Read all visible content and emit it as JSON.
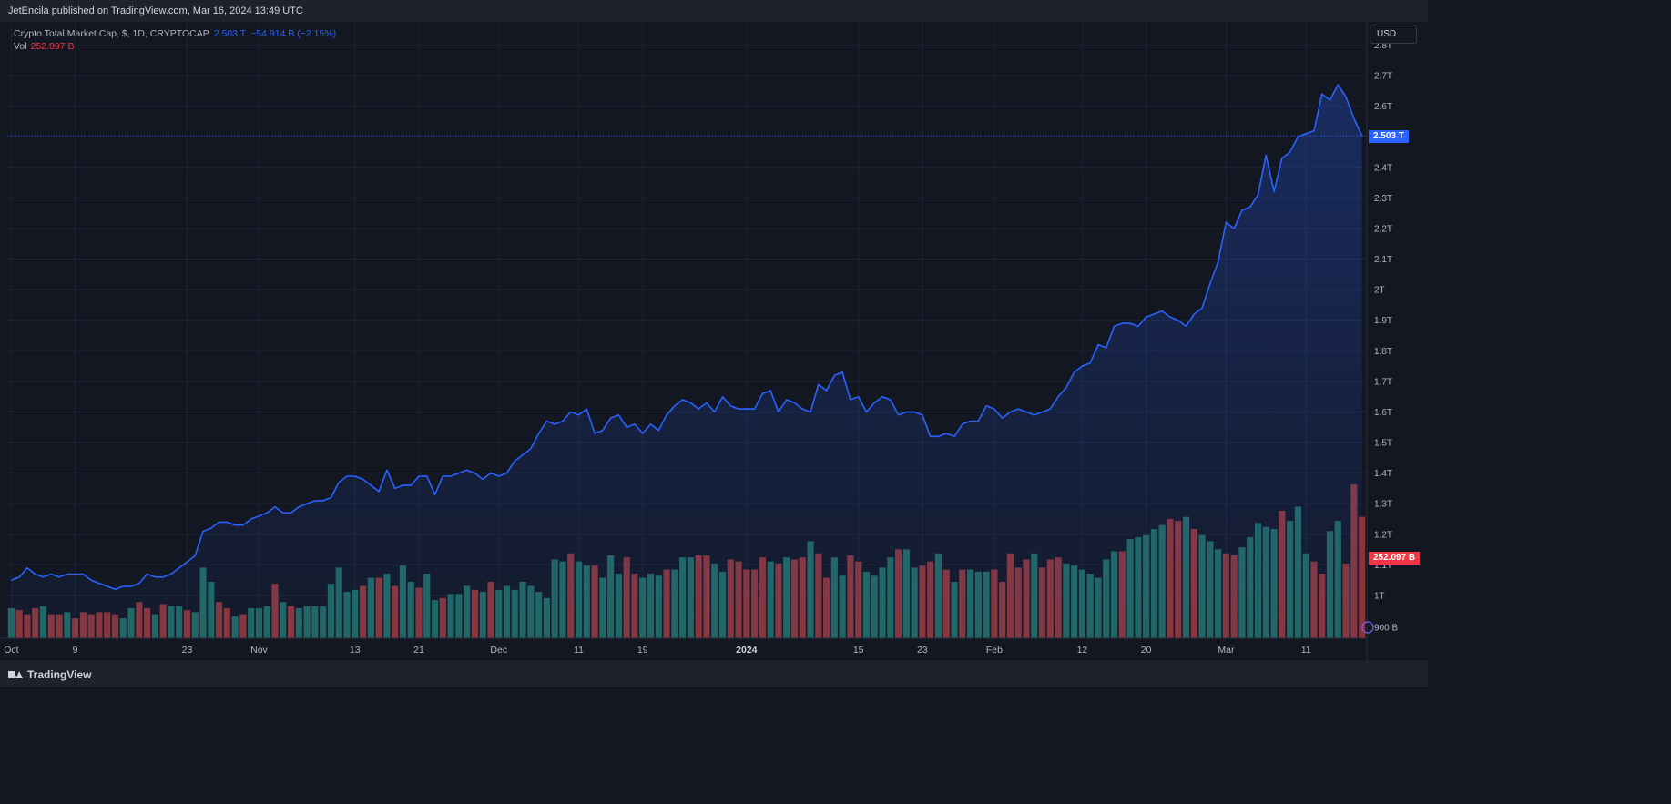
{
  "header": {
    "publish_text": "JetEncila published on TradingView.com, Mar 16, 2024 13:49 UTC"
  },
  "legend": {
    "symbol": "Crypto Total Market Cap, $, 1D, CRYPTOCAP",
    "last": "2.503 T",
    "change": "−54.914 B (−2.15%)",
    "vol_label": "Vol",
    "vol_value": "252.097 B"
  },
  "currency_button": "USD",
  "price_tag": "2.503 T",
  "vol_tag": "252.097 B",
  "footer": {
    "brand": "TradingView"
  },
  "colors": {
    "line": "#2962ff",
    "vol_up": "#22675f",
    "vol_down": "#8a3538",
    "grid": "#1f2433",
    "price_tag": "#2962ff",
    "vol_tag": "#f23645"
  },
  "chart_data": {
    "type": "area",
    "title": "Crypto Total Market Cap, $, 1D, CRYPTOCAP",
    "ylabel": "USD",
    "y_axis": {
      "ticks": [
        1.0,
        1.1,
        1.2,
        1.3,
        1.4,
        1.5,
        1.6,
        1.7,
        1.8,
        1.9,
        2.0,
        2.1,
        2.2,
        2.3,
        2.4,
        2.5,
        2.6,
        2.7,
        2.8
      ],
      "tick_labels": [
        "1T",
        "1.1T",
        "1.2T",
        "1.3T",
        "1.4T",
        "1.5T",
        "1.6T",
        "1.7T",
        "1.8T",
        "1.9T",
        "2T",
        "2.1T",
        "2.2T",
        "2.3T",
        "2.4T",
        "2.5T",
        "2.6T",
        "2.7T",
        "2.8T"
      ],
      "volume_label": "900 B",
      "volume_label_value": 900
    },
    "x_axis": {
      "labels": [
        "Oct",
        "9",
        "23",
        "Nov",
        "13",
        "21",
        "Dec",
        "11",
        "19",
        "2024",
        "15",
        "23",
        "Feb",
        "12",
        "20",
        "Mar",
        "11"
      ],
      "label_days": [
        0,
        8,
        22,
        31,
        43,
        51,
        61,
        71,
        79,
        92,
        106,
        114,
        123,
        134,
        142,
        152,
        162
      ]
    },
    "series": [
      {
        "name": "Crypto Total Market Cap",
        "unit": "T",
        "values": [
          1.05,
          1.06,
          1.09,
          1.07,
          1.06,
          1.07,
          1.06,
          1.07,
          1.07,
          1.07,
          1.05,
          1.04,
          1.03,
          1.02,
          1.03,
          1.03,
          1.04,
          1.07,
          1.06,
          1.06,
          1.07,
          1.09,
          1.11,
          1.13,
          1.21,
          1.22,
          1.24,
          1.24,
          1.23,
          1.23,
          1.25,
          1.26,
          1.27,
          1.29,
          1.27,
          1.27,
          1.29,
          1.3,
          1.31,
          1.31,
          1.32,
          1.37,
          1.39,
          1.39,
          1.38,
          1.36,
          1.34,
          1.41,
          1.35,
          1.36,
          1.36,
          1.39,
          1.39,
          1.33,
          1.39,
          1.39,
          1.4,
          1.41,
          1.4,
          1.38,
          1.4,
          1.39,
          1.4,
          1.44,
          1.46,
          1.48,
          1.53,
          1.57,
          1.56,
          1.57,
          1.6,
          1.59,
          1.61,
          1.53,
          1.54,
          1.58,
          1.59,
          1.55,
          1.56,
          1.53,
          1.56,
          1.54,
          1.59,
          1.62,
          1.64,
          1.63,
          1.61,
          1.63,
          1.6,
          1.65,
          1.62,
          1.61,
          1.61,
          1.61,
          1.66,
          1.67,
          1.6,
          1.64,
          1.63,
          1.61,
          1.6,
          1.69,
          1.67,
          1.72,
          1.73,
          1.64,
          1.65,
          1.6,
          1.63,
          1.65,
          1.64,
          1.59,
          1.6,
          1.6,
          1.59,
          1.52,
          1.52,
          1.53,
          1.52,
          1.56,
          1.57,
          1.57,
          1.62,
          1.61,
          1.58,
          1.6,
          1.61,
          1.6,
          1.59,
          1.6,
          1.61,
          1.65,
          1.68,
          1.73,
          1.75,
          1.76,
          1.82,
          1.81,
          1.88,
          1.89,
          1.89,
          1.88,
          1.91,
          1.92,
          1.93,
          1.91,
          1.9,
          1.88,
          1.92,
          1.94,
          2.02,
          2.09,
          2.22,
          2.2,
          2.26,
          2.27,
          2.31,
          2.44,
          2.32,
          2.43,
          2.45,
          2.5,
          2.51,
          2.52,
          2.64,
          2.62,
          2.67,
          2.63,
          2.56,
          2.503
        ]
      },
      {
        "name": "Vol",
        "unit": "B",
        "up": [
          1,
          0,
          0,
          0,
          1,
          0,
          0,
          1,
          0,
          0,
          0,
          0,
          0,
          0,
          1,
          1,
          0,
          0,
          1,
          0,
          1,
          1,
          0,
          1,
          1,
          1,
          0,
          0,
          1,
          0,
          1,
          1,
          1,
          0,
          1,
          0,
          1,
          1,
          1,
          1,
          1,
          1,
          1,
          1,
          0,
          1,
          0,
          1,
          0,
          1,
          1,
          0,
          1,
          1,
          0,
          1,
          1,
          1,
          0,
          1,
          0,
          1,
          1,
          1,
          1,
          1,
          1,
          1,
          1,
          1,
          0,
          1,
          1,
          0,
          1,
          1,
          1,
          0,
          0,
          1,
          1,
          1,
          0,
          1,
          1,
          1,
          0,
          0,
          1,
          1,
          0,
          0,
          0,
          0,
          0,
          1,
          0,
          1,
          0,
          0,
          1,
          0,
          0,
          1,
          1,
          0,
          0,
          1,
          1,
          1,
          1,
          0,
          1,
          1,
          0,
          0,
          1,
          0,
          1,
          0,
          1,
          1,
          1,
          0,
          0,
          0,
          0,
          0,
          1,
          0,
          0,
          0,
          1,
          1,
          1,
          1,
          1,
          1,
          1,
          0,
          1,
          1,
          1,
          1,
          1,
          0,
          0,
          1,
          0,
          1,
          1,
          1,
          0,
          0,
          1,
          1,
          1,
          1,
          1,
          0,
          1,
          1,
          1,
          0,
          0,
          1,
          1
        ],
        "values": [
          945,
          940,
          930,
          945,
          950,
          930,
          930,
          935,
          920,
          935,
          930,
          935,
          935,
          930,
          920,
          945,
          960,
          945,
          930,
          955,
          950,
          950,
          940,
          935,
          1045,
          1010,
          960,
          945,
          925,
          930,
          945,
          945,
          950,
          1005,
          960,
          950,
          945,
          950,
          950,
          950,
          1005,
          1045,
          985,
          990,
          1000,
          1020,
          1020,
          1030,
          1000,
          1050,
          1010,
          995,
          1030,
          965,
          970,
          980,
          980,
          1000,
          990,
          985,
          1010,
          990,
          1000,
          990,
          1010,
          1000,
          985,
          970,
          1065,
          1060,
          1080,
          1060,
          1050,
          1050,
          1020,
          1075,
          1030,
          1070,
          1030,
          1020,
          1030,
          1025,
          1040,
          1040,
          1070,
          1070,
          1075,
          1075,
          1055,
          1035,
          1065,
          1060,
          1040,
          1040,
          1070,
          1060,
          1055,
          1070,
          1065,
          1070,
          1110,
          1080,
          1020,
          1070,
          1025,
          1075,
          1060,
          1035,
          1025,
          1045,
          1070,
          1090,
          1090,
          1045,
          1050,
          1060,
          1080,
          1040,
          1010,
          1040,
          1040,
          1035,
          1035,
          1040,
          1010,
          1080,
          1045,
          1065,
          1080,
          1045,
          1065,
          1070,
          1055,
          1050,
          1040,
          1030,
          1020,
          1065,
          1085,
          1085,
          1115,
          1120,
          1125,
          1140,
          1150,
          1165,
          1160,
          1170,
          1140,
          1125,
          1110,
          1090,
          1080,
          1075,
          1095,
          1120,
          1155,
          1145,
          1140,
          1185,
          1160,
          1195,
          1080,
          1060,
          1030,
          1135,
          1160,
          1055,
          1250,
          1170,
          1135,
          1185,
          1155,
          1200,
          1190,
          1130,
          1140,
          1210,
          1155,
          1230,
          1252
        ]
      }
    ],
    "last_price": 2.503,
    "last_volume": 252.097
  }
}
